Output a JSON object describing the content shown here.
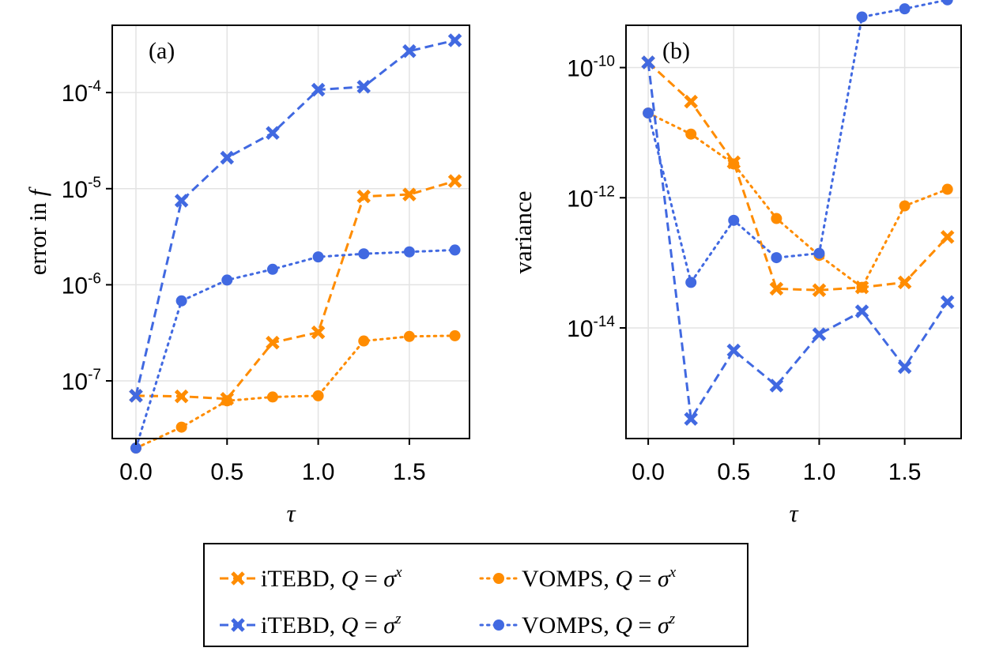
{
  "chart_data": [
    {
      "type": "line",
      "panel_label": "(a)",
      "ylabel": {
        "text": "error in ",
        "symbol": "f"
      },
      "xlabel": "τ",
      "yscale": "log",
      "ylim_exp": [
        -7.6,
        -3.3
      ],
      "xlim": [
        -0.13,
        1.83
      ],
      "x": [
        0.0,
        0.25,
        0.5,
        0.75,
        1.0,
        1.25,
        1.5,
        1.75
      ],
      "xticks": [
        {
          "value": 0.0,
          "label": "0.0"
        },
        {
          "value": 0.5,
          "label": "0.5"
        },
        {
          "value": 1.0,
          "label": "1.0"
        },
        {
          "value": 1.5,
          "label": "1.5"
        }
      ],
      "yticks": [
        {
          "exp": -4,
          "base": "10",
          "sup": "-4"
        },
        {
          "exp": -5,
          "base": "10",
          "sup": "-5"
        },
        {
          "exp": -6,
          "base": "10",
          "sup": "-6"
        },
        {
          "exp": -7,
          "base": "10",
          "sup": "-7"
        }
      ],
      "grid": true,
      "series": [
        {
          "name": "iTEBD, Q=σ^x",
          "color": "#ff8c00",
          "marker": "x",
          "dash": "dashed",
          "values": [
            7e-08,
            6.9e-08,
            6.5e-08,
            2.5e-07,
            3.2e-07,
            8.3e-06,
            8.7e-06,
            1.2e-05
          ]
        },
        {
          "name": "VOMPS, Q=σ^x",
          "color": "#ff8c00",
          "marker": "circle",
          "dash": "dotted",
          "values": [
            2e-08,
            3.3e-08,
            6.2e-08,
            6.8e-08,
            7e-08,
            2.6e-07,
            2.9e-07,
            2.95e-07
          ]
        },
        {
          "name": "iTEBD, Q=σ^z",
          "color": "#4169e1",
          "marker": "x",
          "dash": "dashed",
          "values": [
            7e-08,
            7.5e-06,
            2.1e-05,
            3.8e-05,
            0.000107,
            0.000115,
            0.00027,
            0.00035
          ]
        },
        {
          "name": "VOMPS, Q=σ^z",
          "color": "#4169e1",
          "marker": "circle",
          "dash": "dotted",
          "values": [
            2e-08,
            6.8e-07,
            1.12e-06,
            1.45e-06,
            1.95e-06,
            2.1e-06,
            2.2e-06,
            2.3e-06
          ]
        }
      ]
    },
    {
      "type": "line",
      "panel_label": "(b)",
      "ylabel": {
        "text": "variance",
        "symbol": ""
      },
      "xlabel": "τ",
      "yscale": "log",
      "ylim_exp": [
        -15.7,
        -9.35
      ],
      "xlim": [
        -0.13,
        1.83
      ],
      "x": [
        0.0,
        0.25,
        0.5,
        0.75,
        1.0,
        1.25,
        1.5,
        1.75
      ],
      "xticks": [
        {
          "value": 0.0,
          "label": "0.0"
        },
        {
          "value": 0.5,
          "label": "0.5"
        },
        {
          "value": 1.0,
          "label": "1.0"
        },
        {
          "value": 1.5,
          "label": "1.5"
        }
      ],
      "yticks": [
        {
          "exp": -10,
          "base": "10",
          "sup": "-10"
        },
        {
          "exp": -12,
          "base": "10",
          "sup": "-12"
        },
        {
          "exp": -14,
          "base": "10",
          "sup": "-14"
        }
      ],
      "grid": true,
      "series": [
        {
          "name": "iTEBD, Q=σ^x",
          "color": "#ff8c00",
          "marker": "x",
          "dash": "dashed",
          "values": [
            1.2e-10,
            3e-11,
            3.5e-12,
            4e-14,
            3.8e-14,
            4.2e-14,
            5e-14,
            2.5e-13
          ]
        },
        {
          "name": "VOMPS, Q=σ^x",
          "color": "#ff8c00",
          "marker": "circle",
          "dash": "dotted",
          "values": [
            2e-11,
            9.5e-12,
            3.3e-12,
            4.8e-13,
            1.3e-13,
            4.2e-14,
            7.5e-13,
            1.35e-12
          ]
        },
        {
          "name": "iTEBD, Q=σ^z",
          "color": "#4169e1",
          "marker": "x",
          "dash": "dashed",
          "values": [
            1.2e-10,
            4e-16,
            4.5e-15,
            1.3e-15,
            8e-15,
            1.8e-14,
            2.5e-15,
            2.5e-14
          ]
        },
        {
          "name": "VOMPS, Q=σ^z",
          "color": "#4169e1",
          "marker": "circle",
          "dash": "dotted",
          "values": [
            2e-11,
            5e-14,
            4.5e-13,
            1.2e-13,
            1.4e-13,
            6e-10,
            8e-10,
            1.1e-09
          ]
        }
      ]
    }
  ],
  "legend": {
    "placement": "bottom-center",
    "items": [
      {
        "label": "iTEBD, ",
        "q": "Q",
        "eq": " = ",
        "sigma": "σ",
        "sup": "x",
        "color": "#ff8c00",
        "marker": "x",
        "dash": "dashed"
      },
      {
        "label": "VOMPS, ",
        "q": "Q",
        "eq": " = ",
        "sigma": "σ",
        "sup": "x",
        "color": "#ff8c00",
        "marker": "circle",
        "dash": "dotted"
      },
      {
        "label": "iTEBD, ",
        "q": "Q",
        "eq": " = ",
        "sigma": "σ",
        "sup": "z",
        "color": "#4169e1",
        "marker": "x",
        "dash": "dashed"
      },
      {
        "label": "VOMPS, ",
        "q": "Q",
        "eq": " = ",
        "sigma": "σ",
        "sup": "z",
        "color": "#4169e1",
        "marker": "circle",
        "dash": "dotted"
      }
    ]
  }
}
